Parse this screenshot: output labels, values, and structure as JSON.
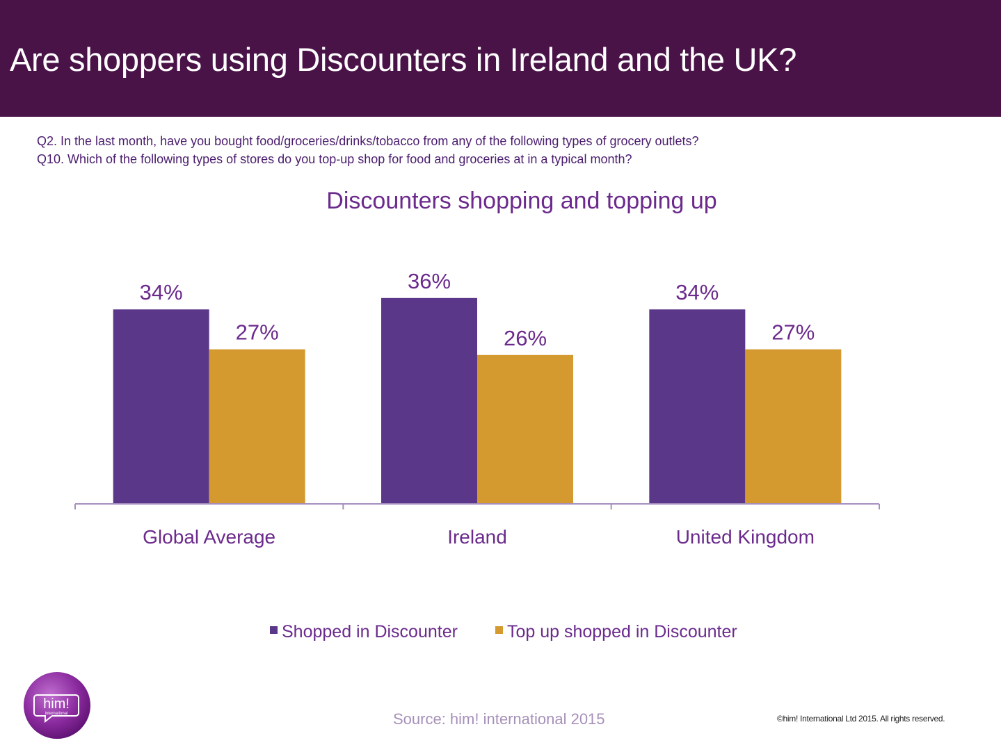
{
  "header": {
    "title": "Are shoppers using Discounters in Ireland and the UK?"
  },
  "questions": {
    "q2": "Q2. In the last month, have you bought food/groceries/drinks/tobacco from any of the following types of grocery outlets?",
    "q10": "Q10. Which of the following types of stores do you top-up shop for food and groceries at in a typical month?"
  },
  "chart_data": {
    "type": "bar",
    "title": "Discounters shopping and topping up",
    "categories": [
      "Global Average",
      "Ireland",
      "United Kingdom"
    ],
    "series": [
      {
        "name": "Shopped in Discounter",
        "values": [
          34,
          36,
          34
        ],
        "labels": [
          "34%",
          "36%",
          "34%"
        ],
        "color": "#5b378a"
      },
      {
        "name": "Top up shopped in Discounter",
        "values": [
          27,
          26,
          27
        ],
        "labels": [
          "27%",
          "26%",
          "27%"
        ],
        "color": "#d49a30"
      }
    ],
    "xlabel": "",
    "ylabel": "",
    "ylim": [
      0,
      40
    ],
    "grid": false,
    "legend_position": "bottom"
  },
  "colors": {
    "header_bg": "#4a1348",
    "text_purple": "#6b2a8c",
    "axis": "#a58ebf"
  },
  "logo": {
    "text_main": "him!",
    "text_sub": "international"
  },
  "footer": {
    "source": "Source: him! international 2015",
    "copyright": "©him! International Ltd 2015. All rights reserved."
  }
}
